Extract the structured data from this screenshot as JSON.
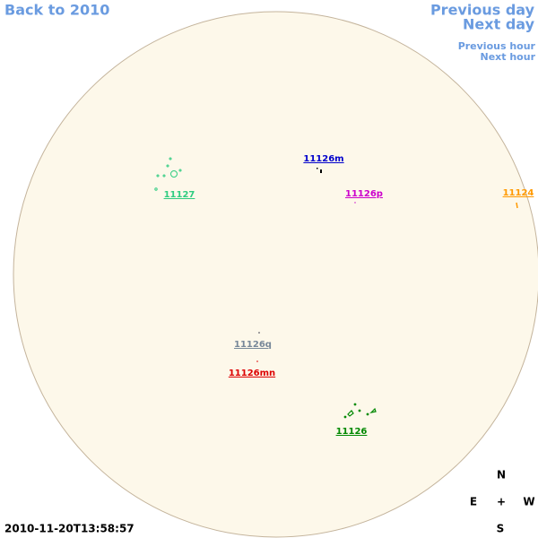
{
  "nav": {
    "back": "Back to 2010",
    "previous_day": "Previous day",
    "next_day": "Next day",
    "previous_hour": "Previous hour",
    "next_hour": "Next hour"
  },
  "regions": [
    {
      "label": "11127",
      "color": "#2ecc80"
    },
    {
      "label": "11126m",
      "color": "#0000cc"
    },
    {
      "label": "11126p",
      "color": "#cc00cc"
    },
    {
      "label": "11124",
      "color": "#ff9900"
    },
    {
      "label": "11126q",
      "color": "#778899"
    },
    {
      "label": "11126mn",
      "color": "#dd0000"
    },
    {
      "label": "11126",
      "color": "#008800"
    }
  ],
  "compass": {
    "north": "N",
    "east": "E",
    "center": "+",
    "west": "W",
    "south": "S"
  },
  "timestamp": "2010-11-20T13:58:57"
}
